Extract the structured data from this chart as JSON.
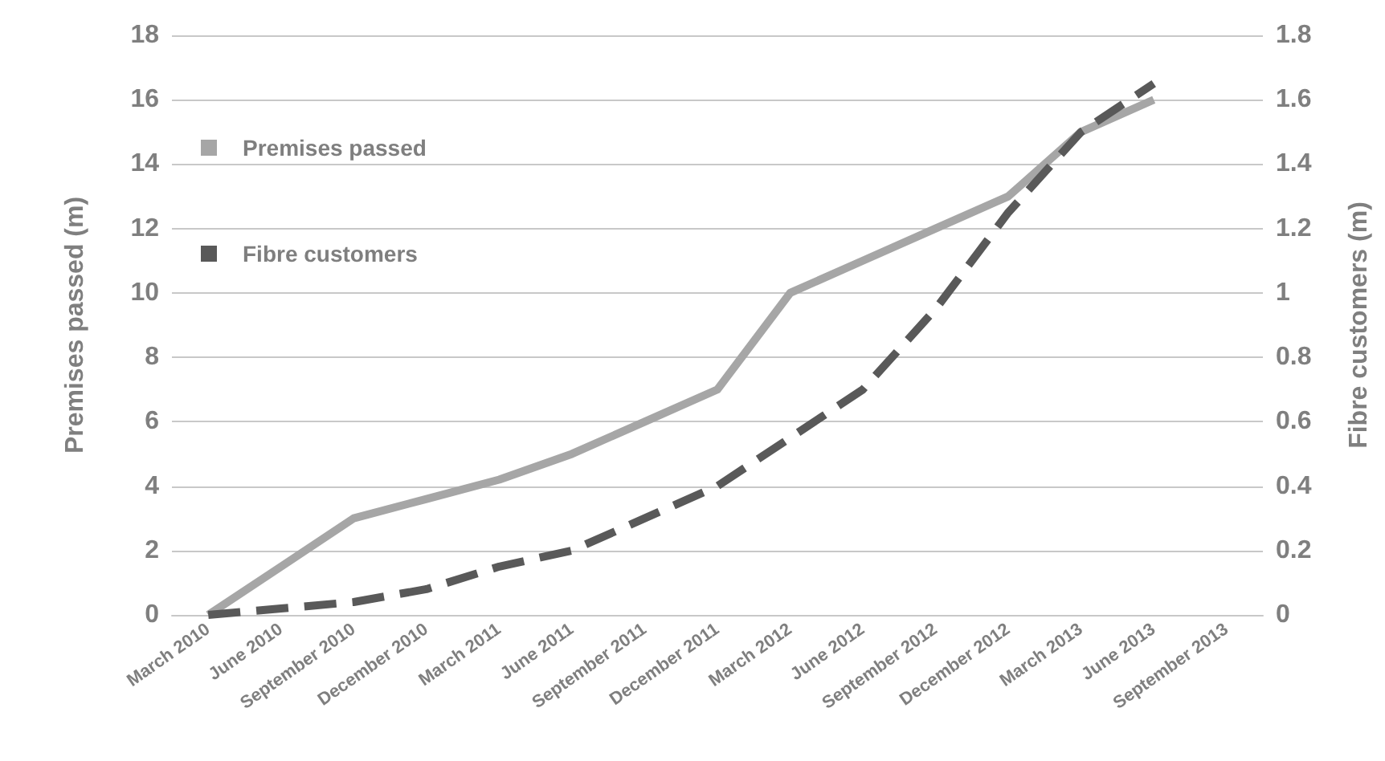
{
  "chart_data": {
    "type": "line",
    "categories": [
      "March 2010",
      "June 2010",
      "September 2010",
      "December 2010",
      "March 2011",
      "June 2011",
      "September 2011",
      "December 2011",
      "March 2012",
      "June 2012",
      "September 2012",
      "December 2012",
      "March 2013",
      "June 2013",
      "September 2013"
    ],
    "ylabel": "Premises passed (m)",
    "y2label": "Fibre customers (m)",
    "ylim": [
      0,
      18
    ],
    "yticks": [
      0,
      2,
      4,
      6,
      8,
      10,
      12,
      14,
      16,
      18
    ],
    "y2lim": [
      0,
      1.8
    ],
    "y2ticks": [
      0,
      0.2,
      0.4,
      0.6,
      0.8,
      1,
      1.2,
      1.4,
      1.6,
      1.8
    ],
    "grid": "y",
    "legend": "top left",
    "marker": "none",
    "series": [
      {
        "name": "Premises passed",
        "color": "#a6a6a6",
        "line_style": "solid",
        "values": [
          0,
          1.5,
          3,
          3.6,
          4.2,
          5,
          6,
          7,
          10,
          11,
          12,
          13,
          15,
          16,
          null
        ]
      },
      {
        "name": "Fibre customers",
        "color": "#595959",
        "line_style": "dashed",
        "axis": "y2",
        "values": [
          0,
          0.02,
          0.04,
          0.08,
          0.15,
          0.2,
          0.3,
          0.4,
          0.55,
          0.7,
          0.95,
          1.25,
          1.5,
          1.65,
          null
        ]
      }
    ]
  }
}
